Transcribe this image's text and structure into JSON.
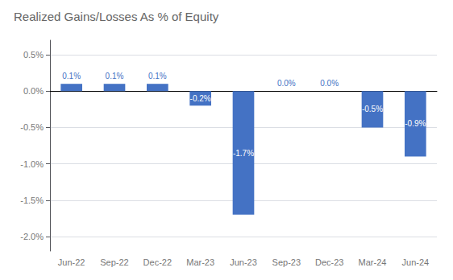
{
  "chart_data": {
    "type": "bar",
    "title": "Realized Gains/Losses As % of Equity",
    "categories": [
      "Jun-22",
      "Sep-22",
      "Dec-22",
      "Mar-23",
      "Jun-23",
      "Sep-23",
      "Dec-23",
      "Mar-24",
      "Jun-24"
    ],
    "values": [
      0.001,
      0.001,
      0.001,
      -0.002,
      -0.017,
      0.0,
      0.0,
      -0.005,
      -0.009
    ],
    "value_labels": [
      "0.1%",
      "0.1%",
      "0.1%",
      "-0.2%",
      "-1.7%",
      "0.0%",
      "0.0%",
      "-0.5%",
      "-0.9%"
    ],
    "data_labels": true,
    "color": "#4472C4",
    "ylim": [
      -0.022,
      0.007
    ],
    "yticks": [
      {
        "value": -0.02,
        "label": "-2.0%"
      },
      {
        "value": -0.015,
        "label": "-1.5%"
      },
      {
        "value": -0.01,
        "label": "-1.0%"
      },
      {
        "value": -0.005,
        "label": "-0.5%"
      },
      {
        "value": 0.0,
        "label": "0.0%"
      },
      {
        "value": 0.005,
        "label": "0.5%"
      }
    ],
    "grid": true
  }
}
